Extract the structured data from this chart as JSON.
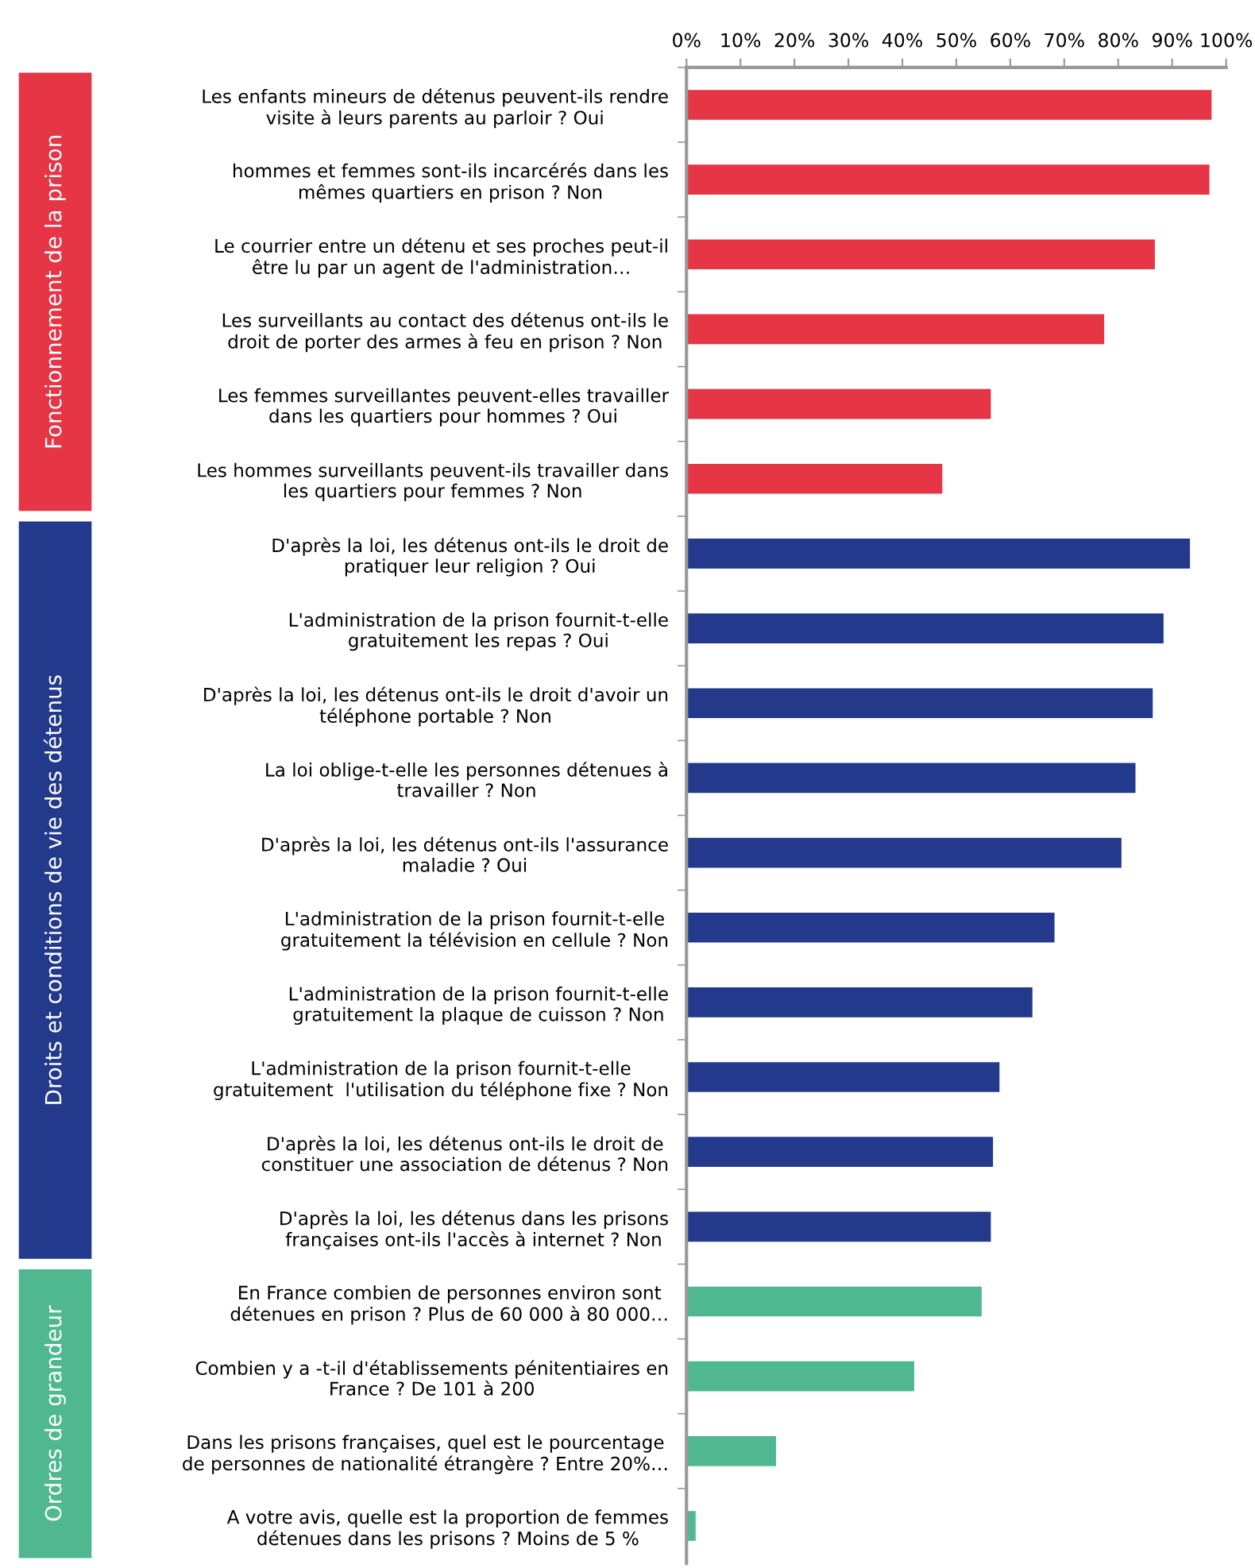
{
  "chart_data": {
    "type": "bar",
    "orientation": "horizontal",
    "categories": [
      "Les enfants mineurs de détenus peuvent-ils rendre\nvisite à leurs parents au parloir ? Oui",
      "hommes et femmes sont-ils incarcérés dans les\nmêmes quartiers en prison ? Non",
      "Le courrier entre un détenu et ses proches peut-il\nêtre lu par un agent de l'administration…",
      "Les surveillants au contact des détenus ont-ils le\ndroit de porter des armes à feu en prison ? Non",
      "Les femmes surveillantes peuvent-elles travailler\ndans les quartiers pour hommes ? Oui",
      "Les hommes surveillants peuvent-ils travailler dans\nles quartiers pour femmes ? Non",
      "D'après la loi, les détenus ont-ils le droit de\npratiquer leur religion ? Oui",
      "L'administration de la prison fournit-t-elle\ngratuitement les repas ? Oui",
      "D'après la loi, les détenus ont-ils le droit d'avoir un\ntéléphone portable ? Non",
      "La loi oblige-t-elle les personnes détenues à\ntravailler ? Non",
      "D'après la loi, les détenus ont-ils l'assurance\nmaladie ? Oui",
      "L'administration de la prison fournit-t-elle\ngratuitement la télévision en cellule ? Non",
      "L'administration de la prison fournit-t-elle\ngratuitement la plaque de cuisson ? Non",
      "L'administration de la prison fournit-t-elle\ngratuitement  l'utilisation du téléphone fixe ? Non",
      "D'après la loi, les détenus ont-ils le droit de\nconstituer une association de détenus ? Non",
      "D'après la loi, les détenus dans les prisons\nfrançaises ont-ils l'accès à internet ? Non",
      "En France combien de personnes environ sont\ndétenues en prison ? Plus de 60 000 à 80 000…",
      "Combien y a -t-il d'établissements pénitentiaires en\nFrance ? De 101 à 200",
      "Dans les prisons françaises, quel est le pourcentage\nde personnes de nationalité étrangère ? Entre 20%…",
      "A votre avis, quelle est la proportion de femmes\ndétenues dans les prisons ? Moins de 5 %"
    ],
    "series": [
      {
        "color": "#e63545",
        "values": [
          97.3,
          96.9,
          86.8,
          77.4,
          56.4,
          47.4,
          null,
          null,
          null,
          null,
          null,
          null,
          null,
          null,
          null,
          null,
          null,
          null,
          null,
          null
        ]
      },
      {
        "color": "#22398c",
        "values": [
          null,
          null,
          null,
          null,
          null,
          null,
          93.3,
          88.4,
          86.4,
          83.2,
          80.6,
          68.2,
          64.1,
          58.0,
          56.8,
          56.4,
          null,
          null,
          null,
          null
        ]
      },
      {
        "color": "#4fb891",
        "values": [
          null,
          null,
          null,
          null,
          null,
          null,
          null,
          null,
          null,
          null,
          null,
          null,
          null,
          null,
          null,
          null,
          54.7,
          42.2,
          16.6,
          1.7
        ]
      }
    ],
    "xlim": [
      0,
      100
    ],
    "xticks": [
      {
        "value": 0,
        "label": "0%"
      },
      {
        "value": 10,
        "label": "10%"
      },
      {
        "value": 20,
        "label": "20%"
      },
      {
        "value": 30,
        "label": "30%"
      },
      {
        "value": 40,
        "label": "40%"
      },
      {
        "value": 50,
        "label": "50%"
      },
      {
        "value": 60,
        "label": "60%"
      },
      {
        "value": 70,
        "label": "70%"
      },
      {
        "value": 80,
        "label": "80%"
      },
      {
        "value": 90,
        "label": "90%"
      },
      {
        "value": 100,
        "label": "100%"
      }
    ],
    "annotations": [
      "Fonctionnement de la prison",
      "Droits et conditions de vie des détenus",
      "Ordres de grandeur"
    ],
    "grid": false,
    "legend": false
  }
}
